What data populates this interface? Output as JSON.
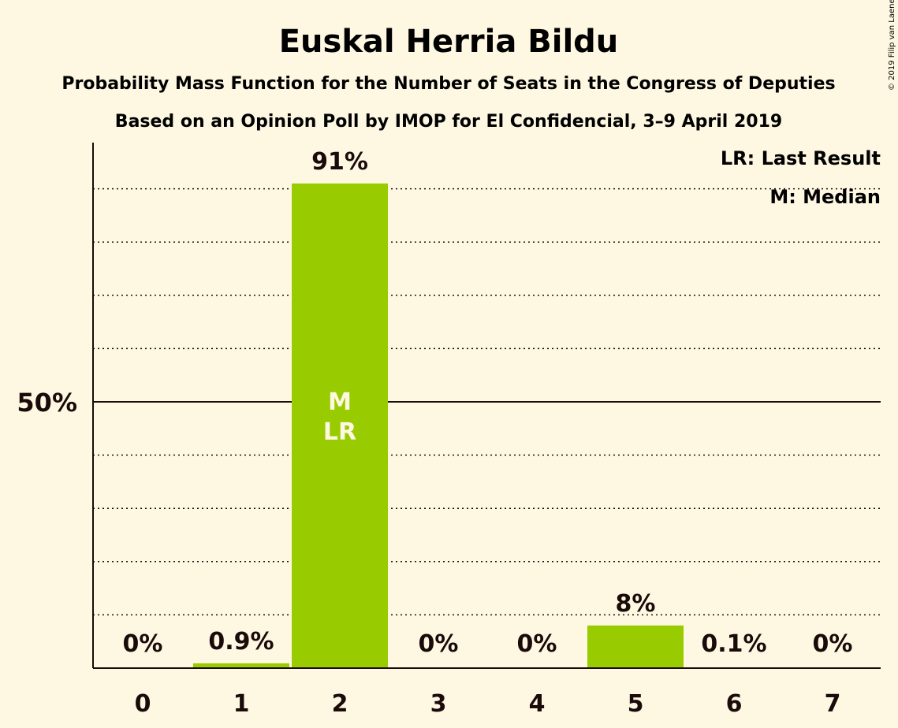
{
  "title": "Euskal Herria Bildu",
  "subtitle1": "Probability Mass Function for the Number of Seats in the Congress of Deputies",
  "subtitle2": "Based on an Opinion Poll by IMOP for El Confidencial, 3–9 April 2019",
  "copyright": "© 2019 Filip van Laenen",
  "legend": {
    "last_result": "LR: Last Result",
    "median": "M: Median"
  },
  "colors": {
    "background": "#fef8e2",
    "bar": "#99cc00",
    "text": "#1a0a0a"
  },
  "chart_data": {
    "type": "bar",
    "categories": [
      "0",
      "1",
      "2",
      "3",
      "4",
      "5",
      "6",
      "7"
    ],
    "values": [
      0,
      0.9,
      91,
      0,
      0,
      8,
      0.1,
      0
    ],
    "value_labels": [
      "0%",
      "0.9%",
      "91%",
      "0%",
      "0%",
      "8%",
      "0.1%",
      "0%"
    ],
    "ylim": [
      0,
      100
    ],
    "y_tick_labels": [
      {
        "value": 50,
        "label": "50%"
      }
    ],
    "grid": "dotted every 10%",
    "median_index": 2,
    "last_result_index": 2,
    "median_marker": "M",
    "last_result_marker": "LR",
    "legend_position": "top-right"
  }
}
